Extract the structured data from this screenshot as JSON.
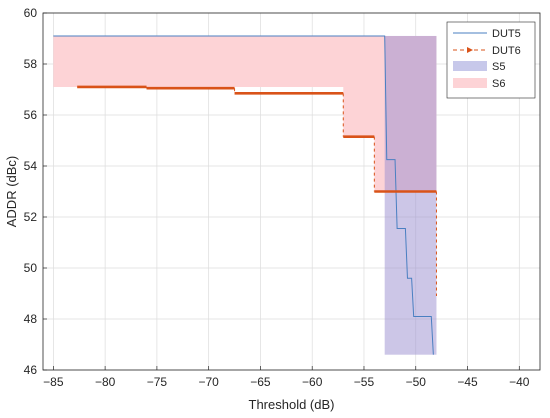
{
  "chart_data": {
    "type": "line",
    "title": "",
    "xlabel": "Threshold (dB)",
    "ylabel": "ADDR (dBc)",
    "xlim": [
      -86,
      -38
    ],
    "ylim": [
      46,
      60
    ],
    "xticks": [
      -85,
      -80,
      -75,
      -70,
      -65,
      -60,
      -55,
      -50,
      -45,
      -40
    ],
    "yticks": [
      46,
      48,
      50,
      52,
      54,
      56,
      58,
      60
    ],
    "grid": true,
    "legend_position": "top-right",
    "series": [
      {
        "name": "DUT5",
        "kind": "line",
        "style": "solid",
        "color": "#4a7fc1",
        "x": [
          -85,
          -53,
          -52.8,
          -52,
          -51.8,
          -51,
          -50.8,
          -50.4,
          -50.2,
          -48.5,
          -48.3
        ],
        "y": [
          59.1,
          59.1,
          54.25,
          54.25,
          51.55,
          51.55,
          49.6,
          49.6,
          48.1,
          48.1,
          46.6
        ]
      },
      {
        "name": "DUT6",
        "kind": "line",
        "style": "dashed-markers",
        "color": "#d95319",
        "x": [
          -82.7,
          -76,
          -67.5,
          -57,
          -54,
          -48
        ],
        "y": [
          57.1,
          57.05,
          56.85,
          55.15,
          53.0,
          48.9
        ]
      },
      {
        "name": "S5",
        "kind": "area",
        "color": "#c7c8ea",
        "x": [
          -53,
          -48
        ],
        "y_upper": [
          59.1,
          59.1
        ],
        "y_lower": [
          46.6,
          46.6
        ]
      },
      {
        "name": "S6",
        "kind": "area",
        "color": "#fdd3d6",
        "x": [
          -85,
          -57,
          -54,
          -48
        ],
        "y_upper": [
          59.1,
          59.1,
          59.1,
          59.1
        ],
        "y_lower": [
          57.1,
          55.15,
          53.0,
          53.0
        ]
      }
    ]
  },
  "legend": {
    "items": [
      {
        "label": "DUT5"
      },
      {
        "label": "DUT6"
      },
      {
        "label": "S5"
      },
      {
        "label": "S6"
      }
    ]
  }
}
